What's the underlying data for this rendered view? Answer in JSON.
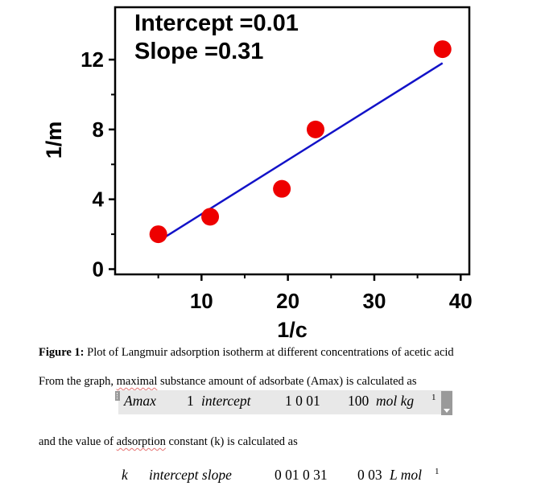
{
  "chart_data": {
    "type": "scatter",
    "title": "",
    "xlabel": "1/c",
    "ylabel": "1/m",
    "xlim": [
      0,
      41
    ],
    "ylim": [
      -0.3,
      15
    ],
    "x_ticks": [
      "10",
      "20",
      "30",
      "40"
    ],
    "y_ticks": [
      "0",
      "4",
      "8",
      "12"
    ],
    "points": [
      {
        "x": 5.0,
        "y": 2.0
      },
      {
        "x": 11.0,
        "y": 3.0
      },
      {
        "x": 19.3,
        "y": 4.6
      },
      {
        "x": 23.2,
        "y": 8.0
      },
      {
        "x": 37.9,
        "y": 12.6
      }
    ],
    "fit_line": {
      "x": [
        5.0,
        37.9
      ],
      "y": [
        1.6,
        11.8
      ]
    },
    "annotations": [
      "Intercept =0.01",
      "Slope =0.31"
    ],
    "point_color": "#ee0000",
    "line_color": "#1212c8",
    "grid": false,
    "legend": "none"
  },
  "caption": {
    "label": "Figure 1:",
    "text": " Plot of Langmuir adsorption isotherm at different concentrations of acetic acid"
  },
  "para1": {
    "before": "From the graph, ",
    "underlined": "maximal",
    "after": " substance amount of adsorbate (Amax) is calculated as"
  },
  "eq1": {
    "lhs": "Amax",
    "one": "1",
    "term": "intercept",
    "num": "1 0 01",
    "result": "100",
    "unit": "mol kg",
    "sup": "1"
  },
  "para2": {
    "before": "and the value of ",
    "underlined": "adsorption",
    "after": " constant (k) is calculated as"
  },
  "eq2": {
    "lhs": "k",
    "term": "intercept slope",
    "num": "0 01 0 31",
    "result": "0 03",
    "unit": "L mol",
    "sup": "1"
  }
}
